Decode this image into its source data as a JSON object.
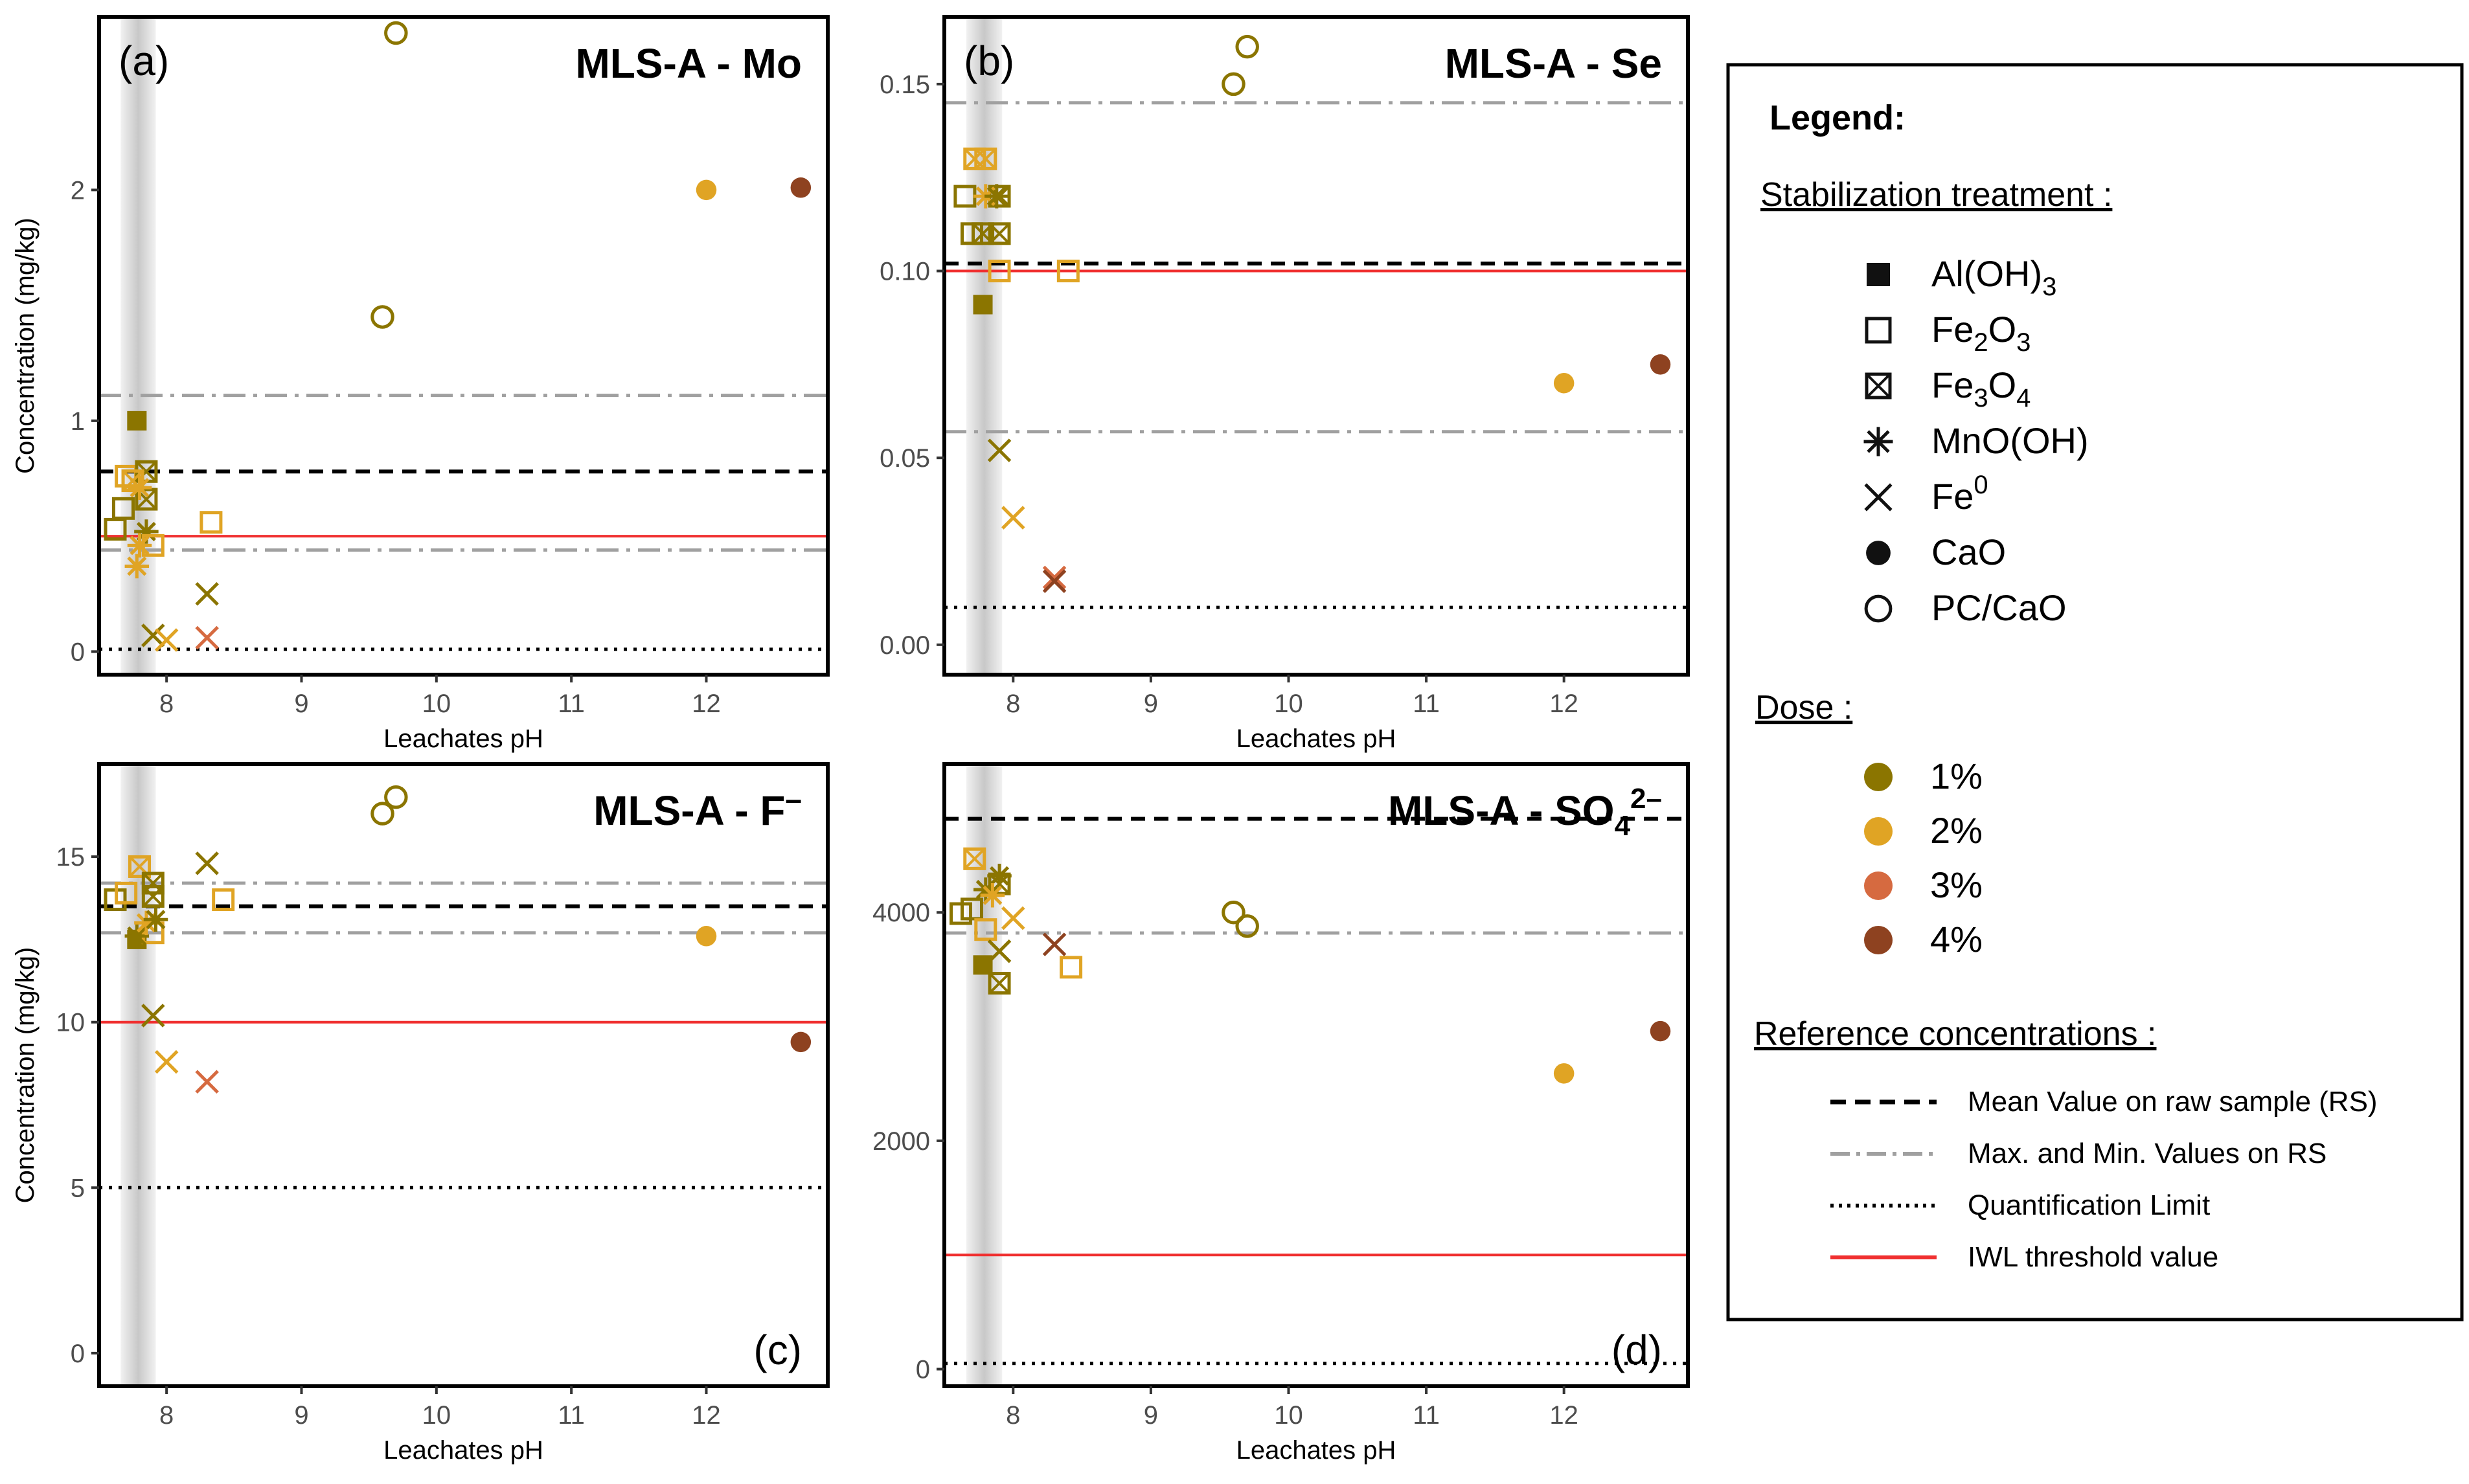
{
  "chart_data": {
    "type": "scatter",
    "shared": {
      "xlabel": "Leachates pH",
      "ylabel": "Concentration (mg/kg)",
      "xlim": [
        7.5,
        12.9
      ],
      "x_ticks": [
        8,
        9,
        10,
        11,
        12
      ],
      "gray_band_x": [
        7.66,
        7.92
      ]
    },
    "panels": [
      {
        "id": "a",
        "tag": "(a)",
        "title": "MLS-A - Mo",
        "title_sup": "",
        "ylim": [
          -0.1,
          2.75
        ],
        "y_ticks": [
          0,
          1,
          2
        ],
        "y_tick_labels": [
          "0",
          "1",
          "2"
        ],
        "tag_corner": "top-left",
        "ref": {
          "mean": 0.78,
          "max": 1.11,
          "min": 0.44,
          "ql": 0.01,
          "iwl": 0.5
        },
        "points": [
          {
            "x": 7.78,
            "y": 1.0,
            "treatment": "Al(OH)3",
            "dose": "1%"
          },
          {
            "x": 7.62,
            "y": 0.53,
            "treatment": "Fe2O3",
            "dose": "1%"
          },
          {
            "x": 7.68,
            "y": 0.62,
            "treatment": "Fe2O3",
            "dose": "1%"
          },
          {
            "x": 7.7,
            "y": 0.76,
            "treatment": "Fe2O3",
            "dose": "2%"
          },
          {
            "x": 8.33,
            "y": 0.56,
            "treatment": "Fe2O3",
            "dose": "2%"
          },
          {
            "x": 7.85,
            "y": 0.78,
            "treatment": "Fe3O4",
            "dose": "1%"
          },
          {
            "x": 7.85,
            "y": 0.66,
            "treatment": "Fe3O4",
            "dose": "1%"
          },
          {
            "x": 7.75,
            "y": 0.74,
            "treatment": "Fe3O4",
            "dose": "2%"
          },
          {
            "x": 7.8,
            "y": 0.71,
            "treatment": "MnO(OH)",
            "dose": "2%"
          },
          {
            "x": 7.85,
            "y": 0.52,
            "treatment": "MnO(OH)",
            "dose": "1%"
          },
          {
            "x": 7.8,
            "y": 0.46,
            "treatment": "MnO(OH)",
            "dose": "2%"
          },
          {
            "x": 7.78,
            "y": 0.37,
            "treatment": "MnO(OH)",
            "dose": "2%"
          },
          {
            "x": 7.9,
            "y": 0.46,
            "treatment": "Fe2O3",
            "dose": "2%"
          },
          {
            "x": 7.9,
            "y": 0.07,
            "treatment": "Fe0",
            "dose": "1%"
          },
          {
            "x": 8.0,
            "y": 0.05,
            "treatment": "Fe0",
            "dose": "2%"
          },
          {
            "x": 8.3,
            "y": 0.25,
            "treatment": "Fe0",
            "dose": "1%"
          },
          {
            "x": 8.3,
            "y": 0.06,
            "treatment": "Fe0",
            "dose": "3%"
          },
          {
            "x": 12.0,
            "y": 2.0,
            "treatment": "CaO",
            "dose": "2%"
          },
          {
            "x": 12.7,
            "y": 2.01,
            "treatment": "CaO",
            "dose": "4%"
          },
          {
            "x": 9.6,
            "y": 1.45,
            "treatment": "PC/CaO",
            "dose": "1%"
          },
          {
            "x": 9.7,
            "y": 2.68,
            "treatment": "PC/CaO",
            "dose": "1%"
          }
        ]
      },
      {
        "id": "b",
        "tag": "(b)",
        "title": "MLS-A - Se",
        "title_sup": "",
        "ylim": [
          -0.008,
          0.168
        ],
        "y_ticks": [
          0.0,
          0.05,
          0.1,
          0.15
        ],
        "y_tick_labels": [
          "0.00",
          "0.05",
          "0.10",
          "0.15"
        ],
        "tag_corner": "top-left",
        "ref": {
          "mean": 0.102,
          "max": 0.145,
          "min": 0.057,
          "ql": 0.01,
          "iwl": 0.1
        },
        "points": [
          {
            "x": 7.78,
            "y": 0.091,
            "treatment": "Al(OH)3",
            "dose": "1%"
          },
          {
            "x": 7.65,
            "y": 0.12,
            "treatment": "Fe2O3",
            "dose": "1%"
          },
          {
            "x": 7.7,
            "y": 0.11,
            "treatment": "Fe2O3",
            "dose": "1%"
          },
          {
            "x": 7.9,
            "y": 0.1,
            "treatment": "Fe2O3",
            "dose": "2%"
          },
          {
            "x": 8.4,
            "y": 0.1,
            "treatment": "Fe2O3",
            "dose": "2%"
          },
          {
            "x": 7.72,
            "y": 0.13,
            "treatment": "Fe3O4",
            "dose": "2%"
          },
          {
            "x": 7.8,
            "y": 0.13,
            "treatment": "Fe3O4",
            "dose": "2%"
          },
          {
            "x": 7.78,
            "y": 0.11,
            "treatment": "Fe3O4",
            "dose": "1%"
          },
          {
            "x": 7.9,
            "y": 0.11,
            "treatment": "Fe3O4",
            "dose": "1%"
          },
          {
            "x": 7.9,
            "y": 0.12,
            "treatment": "Fe3O4",
            "dose": "1%"
          },
          {
            "x": 7.8,
            "y": 0.12,
            "treatment": "MnO(OH)",
            "dose": "2%"
          },
          {
            "x": 7.88,
            "y": 0.12,
            "treatment": "MnO(OH)",
            "dose": "1%"
          },
          {
            "x": 7.9,
            "y": 0.052,
            "treatment": "Fe0",
            "dose": "1%"
          },
          {
            "x": 8.0,
            "y": 0.034,
            "treatment": "Fe0",
            "dose": "2%"
          },
          {
            "x": 8.3,
            "y": 0.018,
            "treatment": "Fe0",
            "dose": "3%"
          },
          {
            "x": 8.3,
            "y": 0.017,
            "treatment": "Fe0",
            "dose": "4%"
          },
          {
            "x": 12.0,
            "y": 0.07,
            "treatment": "CaO",
            "dose": "2%"
          },
          {
            "x": 12.7,
            "y": 0.075,
            "treatment": "CaO",
            "dose": "4%"
          },
          {
            "x": 9.6,
            "y": 0.15,
            "treatment": "PC/CaO",
            "dose": "1%"
          },
          {
            "x": 9.7,
            "y": 0.16,
            "treatment": "PC/CaO",
            "dose": "1%"
          }
        ]
      },
      {
        "id": "c",
        "tag": "(c)",
        "title": "MLS-A - F",
        "title_sup": "–",
        "ylim": [
          -1,
          17.8
        ],
        "y_ticks": [
          0,
          5,
          10,
          15
        ],
        "y_tick_labels": [
          "0",
          "5",
          "10",
          "15"
        ],
        "tag_corner": "bottom-right",
        "ref": {
          "mean": 13.5,
          "max": 14.2,
          "min": 12.7,
          "ql": 5.0,
          "iwl": 10.0
        },
        "points": [
          {
            "x": 7.78,
            "y": 12.5,
            "treatment": "Al(OH)3",
            "dose": "1%"
          },
          {
            "x": 7.62,
            "y": 13.7,
            "treatment": "Fe2O3",
            "dose": "1%"
          },
          {
            "x": 7.7,
            "y": 13.9,
            "treatment": "Fe2O3",
            "dose": "2%"
          },
          {
            "x": 7.9,
            "y": 12.7,
            "treatment": "Fe2O3",
            "dose": "2%"
          },
          {
            "x": 8.42,
            "y": 13.7,
            "treatment": "Fe2O3",
            "dose": "2%"
          },
          {
            "x": 7.8,
            "y": 14.7,
            "treatment": "Fe3O4",
            "dose": "2%"
          },
          {
            "x": 7.9,
            "y": 14.2,
            "treatment": "Fe3O4",
            "dose": "1%"
          },
          {
            "x": 7.9,
            "y": 13.8,
            "treatment": "Fe3O4",
            "dose": "1%"
          },
          {
            "x": 7.78,
            "y": 12.6,
            "treatment": "MnO(OH)",
            "dose": "1%"
          },
          {
            "x": 7.85,
            "y": 13.0,
            "treatment": "MnO(OH)",
            "dose": "2%"
          },
          {
            "x": 7.92,
            "y": 13.1,
            "treatment": "MnO(OH)",
            "dose": "1%"
          },
          {
            "x": 7.9,
            "y": 10.2,
            "treatment": "Fe0",
            "dose": "1%"
          },
          {
            "x": 8.0,
            "y": 8.8,
            "treatment": "Fe0",
            "dose": "2%"
          },
          {
            "x": 8.3,
            "y": 8.2,
            "treatment": "Fe0",
            "dose": "3%"
          },
          {
            "x": 8.3,
            "y": 14.8,
            "treatment": "Fe0",
            "dose": "1%"
          },
          {
            "x": 12.0,
            "y": 12.6,
            "treatment": "CaO",
            "dose": "2%"
          },
          {
            "x": 12.7,
            "y": 9.4,
            "treatment": "CaO",
            "dose": "4%"
          },
          {
            "x": 9.6,
            "y": 16.3,
            "treatment": "PC/CaO",
            "dose": "1%"
          },
          {
            "x": 9.7,
            "y": 16.8,
            "treatment": "PC/CaO",
            "dose": "1%"
          }
        ]
      },
      {
        "id": "d",
        "tag": "(d)",
        "title": "MLS-A - SO",
        "title_sub": "4",
        "title_sup": "2–",
        "ylim": [
          -150,
          5300
        ],
        "y_ticks": [
          0,
          2000,
          4000
        ],
        "y_tick_labels": [
          "0",
          "2000",
          "4000"
        ],
        "tag_corner": "bottom-right",
        "ref": {
          "mean": 4820,
          "max": null,
          "min": 3820,
          "ql": 50,
          "iwl": 1000
        },
        "points": [
          {
            "x": 7.78,
            "y": 3540,
            "treatment": "Al(OH)3",
            "dose": "1%"
          },
          {
            "x": 7.62,
            "y": 3990,
            "treatment": "Fe2O3",
            "dose": "1%"
          },
          {
            "x": 7.7,
            "y": 4030,
            "treatment": "Fe2O3",
            "dose": "1%"
          },
          {
            "x": 7.8,
            "y": 3850,
            "treatment": "Fe2O3",
            "dose": "2%"
          },
          {
            "x": 8.42,
            "y": 3520,
            "treatment": "Fe2O3",
            "dose": "2%"
          },
          {
            "x": 7.72,
            "y": 4470,
            "treatment": "Fe3O4",
            "dose": "2%"
          },
          {
            "x": 7.9,
            "y": 4250,
            "treatment": "Fe3O4",
            "dose": "1%"
          },
          {
            "x": 7.9,
            "y": 3380,
            "treatment": "Fe3O4",
            "dose": "1%"
          },
          {
            "x": 7.8,
            "y": 4200,
            "treatment": "MnO(OH)",
            "dose": "1%"
          },
          {
            "x": 7.9,
            "y": 4320,
            "treatment": "MnO(OH)",
            "dose": "1%"
          },
          {
            "x": 7.85,
            "y": 4150,
            "treatment": "MnO(OH)",
            "dose": "2%"
          },
          {
            "x": 7.9,
            "y": 3660,
            "treatment": "Fe0",
            "dose": "1%"
          },
          {
            "x": 8.0,
            "y": 3950,
            "treatment": "Fe0",
            "dose": "2%"
          },
          {
            "x": 8.3,
            "y": 3720,
            "treatment": "Fe0",
            "dose": "4%"
          },
          {
            "x": 12.0,
            "y": 2590,
            "treatment": "CaO",
            "dose": "2%"
          },
          {
            "x": 12.7,
            "y": 2960,
            "treatment": "CaO",
            "dose": "4%"
          },
          {
            "x": 9.6,
            "y": 4000,
            "treatment": "PC/CaO",
            "dose": "1%"
          },
          {
            "x": 9.7,
            "y": 3880,
            "treatment": "PC/CaO",
            "dose": "1%"
          }
        ]
      }
    ]
  },
  "colors": {
    "dose": {
      "1%": "#8B7500",
      "2%": "#E0A424",
      "3%": "#D66A40",
      "4%": "#8E4220"
    },
    "mean_line": "#000000",
    "minmax_line": "#A0A0A0",
    "ql_line": "#000000",
    "iwl_line": "#F03030",
    "band": "#C8C8C8"
  },
  "legend": {
    "title": "Legend:",
    "treatment_heading": "Stabilization treatment :",
    "treatments": [
      {
        "key": "Al(OH)3",
        "base": "Al(OH)",
        "sub": "3",
        "sup": "",
        "tail": "",
        "symbol": "filled-square"
      },
      {
        "key": "Fe2O3",
        "base": "Fe",
        "sub": "2",
        "mid": "O",
        "sub2": "3",
        "symbol": "open-square"
      },
      {
        "key": "Fe3O4",
        "base": "Fe",
        "sub": "3",
        "mid": "O",
        "sub2": "4",
        "symbol": "crossed-square"
      },
      {
        "key": "MnO(OH)",
        "base": "MnO(OH)",
        "symbol": "asterisk"
      },
      {
        "key": "Fe0",
        "base": "Fe",
        "sup": "0",
        "symbol": "cross"
      },
      {
        "key": "CaO",
        "base": "CaO",
        "symbol": "filled-circle"
      },
      {
        "key": "PC/CaO",
        "base": "PC/CaO",
        "symbol": "open-circle"
      }
    ],
    "dose_heading": "Dose :",
    "doses": [
      "1%",
      "2%",
      "3%",
      "4%"
    ],
    "ref_heading": "Reference concentrations :",
    "refs": [
      {
        "label": "Mean Value on raw sample (RS)",
        "style": "mean"
      },
      {
        "label": "Max. and Min. Values on RS",
        "style": "minmax"
      },
      {
        "label": "Quantification Limit",
        "style": "ql"
      },
      {
        "label": "IWL threshold value",
        "style": "iwl"
      }
    ]
  }
}
